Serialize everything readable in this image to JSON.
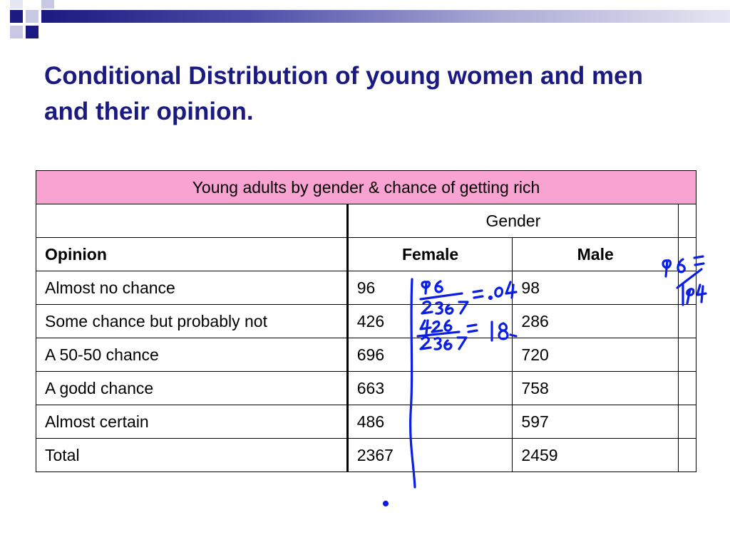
{
  "slide": {
    "title": "Conditional Distribution of young women and men and their opinion."
  },
  "table": {
    "caption": "Young adults by gender & chance of getting rich",
    "group_header": "Gender",
    "columns": [
      "Opinion",
      "Female",
      "Male"
    ],
    "rows": [
      {
        "opinion": "Almost no chance",
        "female": "96",
        "male": "98"
      },
      {
        "opinion": "Some chance but probably not",
        "female": "426",
        "male": "286"
      },
      {
        "opinion": "A 50-50 chance",
        "female": "696",
        "male": "720"
      },
      {
        "opinion": "A godd chance",
        "female": "663",
        "male": "758"
      },
      {
        "opinion": "Almost certain",
        "female": "486",
        "male": "597"
      },
      {
        "opinion": "Total",
        "female": "2367",
        "male": "2459"
      }
    ]
  },
  "colors": {
    "title": "#1a1a80",
    "caption_bg": "#f9a3d2",
    "ink": "#0a1ee6"
  }
}
